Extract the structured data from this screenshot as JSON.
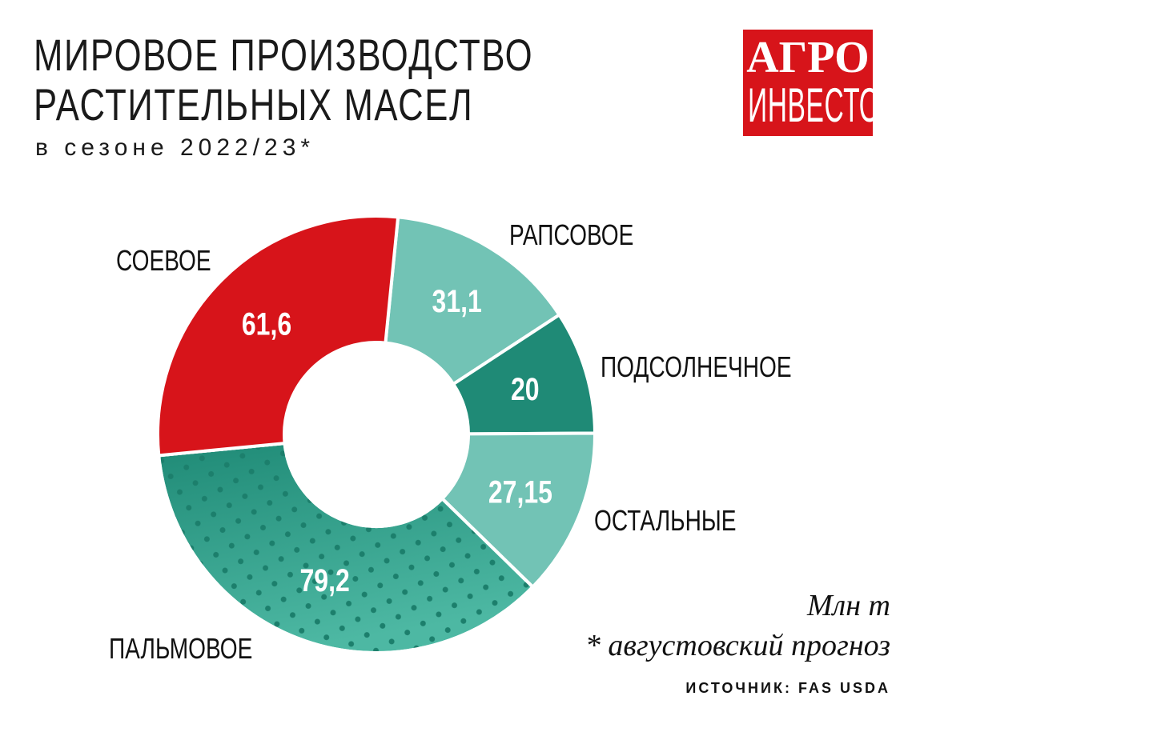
{
  "title_line1": "МИРОВОЕ ПРОИЗВОДСТВО",
  "title_line2": "РАСТИТЕЛЬНЫХ МАСЕЛ",
  "subtitle": "в сезоне 2022/23*",
  "logo": {
    "line1": "АГРО",
    "line2": "ИНВЕСТОР",
    "color": "#d7141a"
  },
  "unit": "Млн т",
  "footnote": "* августовский прогноз",
  "source": "ИСТОЧНИК: FAS USDA",
  "chart_data": {
    "type": "pie",
    "donut": true,
    "unit": "Млн т",
    "slices": [
      {
        "name": "РАПСОВОЕ",
        "value": 31.1,
        "label": "31,1",
        "color": "#72c3b5"
      },
      {
        "name": "ПОДСОЛНЕЧНОЕ",
        "value": 20,
        "label": "20",
        "color": "#1f8a76"
      },
      {
        "name": "ОСТАЛЬНЫЕ",
        "value": 27.15,
        "label": "27,15",
        "color": "#72c3b5"
      },
      {
        "name": "ПАЛЬМОВОЕ",
        "value": 79.2,
        "label": "79,2",
        "color": "#35a08b",
        "pattern": "dots"
      },
      {
        "name": "СОЕВОЕ",
        "value": 61.6,
        "label": "61,6",
        "color": "#d7141a"
      }
    ]
  }
}
